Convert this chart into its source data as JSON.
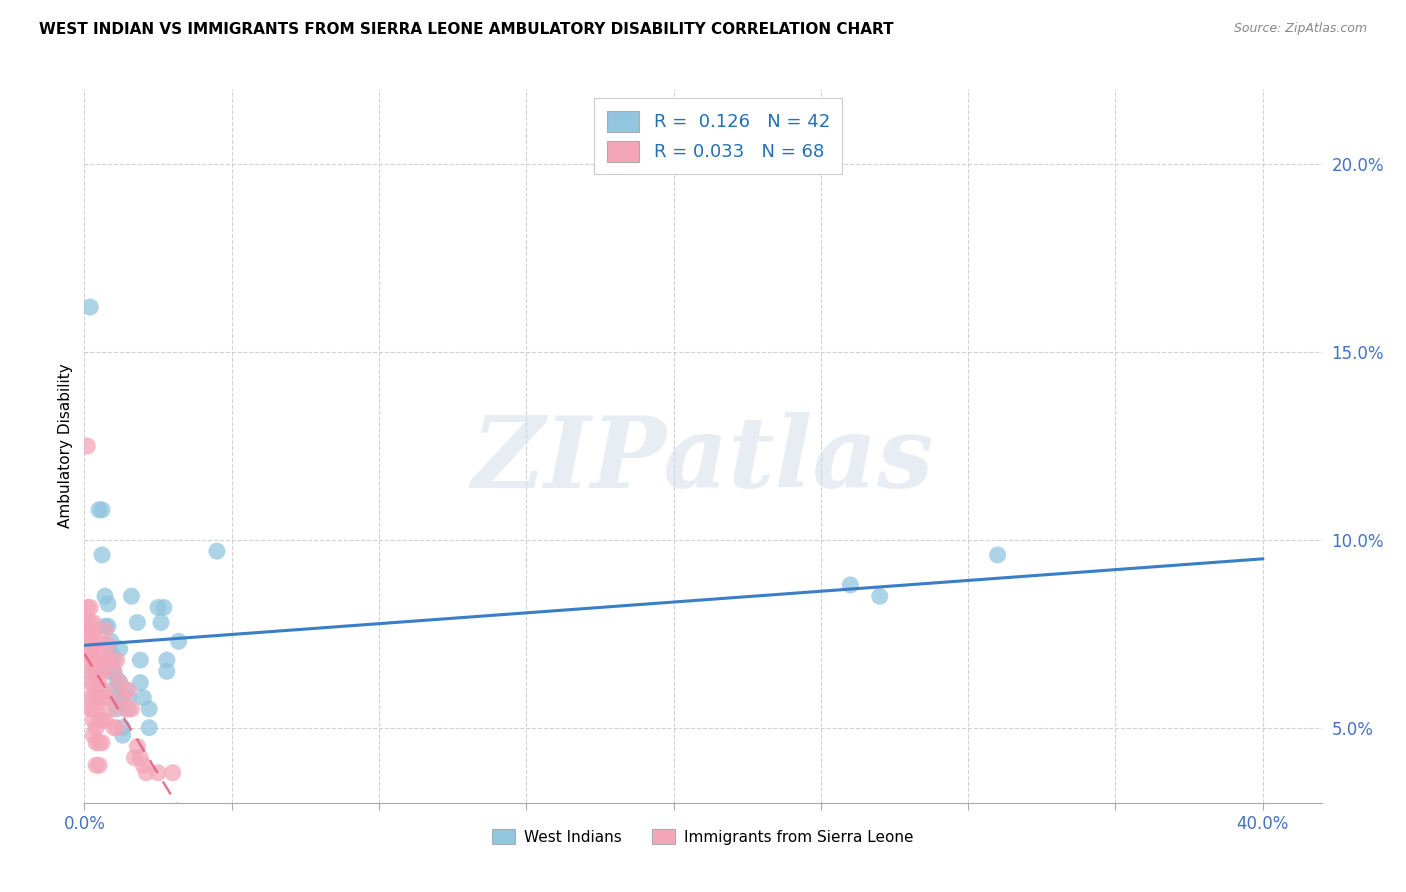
{
  "title": "WEST INDIAN VS IMMIGRANTS FROM SIERRA LEONE AMBULATORY DISABILITY CORRELATION CHART",
  "source": "Source: ZipAtlas.com",
  "ylabel": "Ambulatory Disability",
  "xlim": [
    0.0,
    0.42
  ],
  "ylim": [
    0.03,
    0.22
  ],
  "xticks": [
    0.0,
    0.05,
    0.1,
    0.15,
    0.2,
    0.25,
    0.3,
    0.35,
    0.4
  ],
  "yticks": [
    0.05,
    0.1,
    0.15,
    0.2
  ],
  "xtick_labels": [
    "0.0%",
    "",
    "",
    "",
    "",
    "",
    "",
    "",
    "40.0%"
  ],
  "ytick_labels": [
    "5.0%",
    "10.0%",
    "15.0%",
    "20.0%"
  ],
  "blue_R": 0.126,
  "blue_N": 42,
  "pink_R": 0.033,
  "pink_N": 68,
  "blue_color": "#92c5de",
  "pink_color": "#f4a6b8",
  "blue_line_color": "#3a7ec6",
  "pink_line_color": "#e06080",
  "background_color": "#ffffff",
  "watermark_text": "ZIPatlas",
  "legend_label_blue": "West Indians",
  "legend_label_pink": "Immigrants from Sierra Leone",
  "blue_scatter": [
    [
      0.002,
      0.162
    ],
    [
      0.005,
      0.108
    ],
    [
      0.006,
      0.108
    ],
    [
      0.006,
      0.096
    ],
    [
      0.007,
      0.085
    ],
    [
      0.007,
      0.077
    ],
    [
      0.008,
      0.077
    ],
    [
      0.008,
      0.083
    ],
    [
      0.009,
      0.073
    ],
    [
      0.009,
      0.07
    ],
    [
      0.009,
      0.065
    ],
    [
      0.01,
      0.068
    ],
    [
      0.01,
      0.065
    ],
    [
      0.01,
      0.06
    ],
    [
      0.011,
      0.063
    ],
    [
      0.011,
      0.058
    ],
    [
      0.011,
      0.055
    ],
    [
      0.012,
      0.071
    ],
    [
      0.012,
      0.062
    ],
    [
      0.013,
      0.057
    ],
    [
      0.013,
      0.05
    ],
    [
      0.013,
      0.048
    ],
    [
      0.014,
      0.06
    ],
    [
      0.015,
      0.058
    ],
    [
      0.015,
      0.055
    ],
    [
      0.016,
      0.085
    ],
    [
      0.018,
      0.078
    ],
    [
      0.019,
      0.068
    ],
    [
      0.019,
      0.062
    ],
    [
      0.02,
      0.058
    ],
    [
      0.022,
      0.055
    ],
    [
      0.022,
      0.05
    ],
    [
      0.025,
      0.082
    ],
    [
      0.026,
      0.078
    ],
    [
      0.027,
      0.082
    ],
    [
      0.028,
      0.068
    ],
    [
      0.028,
      0.065
    ],
    [
      0.032,
      0.073
    ],
    [
      0.045,
      0.097
    ],
    [
      0.26,
      0.088
    ],
    [
      0.27,
      0.085
    ],
    [
      0.31,
      0.096
    ]
  ],
  "pink_scatter": [
    [
      0.001,
      0.125
    ],
    [
      0.001,
      0.082
    ],
    [
      0.001,
      0.078
    ],
    [
      0.001,
      0.075
    ],
    [
      0.001,
      0.072
    ],
    [
      0.001,
      0.07
    ],
    [
      0.002,
      0.082
    ],
    [
      0.002,
      0.078
    ],
    [
      0.002,
      0.075
    ],
    [
      0.002,
      0.07
    ],
    [
      0.002,
      0.068
    ],
    [
      0.002,
      0.065
    ],
    [
      0.002,
      0.062
    ],
    [
      0.002,
      0.058
    ],
    [
      0.002,
      0.055
    ],
    [
      0.003,
      0.078
    ],
    [
      0.003,
      0.075
    ],
    [
      0.003,
      0.072
    ],
    [
      0.003,
      0.068
    ],
    [
      0.003,
      0.065
    ],
    [
      0.003,
      0.062
    ],
    [
      0.003,
      0.058
    ],
    [
      0.003,
      0.055
    ],
    [
      0.003,
      0.052
    ],
    [
      0.003,
      0.048
    ],
    [
      0.004,
      0.072
    ],
    [
      0.004,
      0.068
    ],
    [
      0.004,
      0.065
    ],
    [
      0.004,
      0.06
    ],
    [
      0.004,
      0.055
    ],
    [
      0.004,
      0.05
    ],
    [
      0.004,
      0.046
    ],
    [
      0.004,
      0.04
    ],
    [
      0.005,
      0.068
    ],
    [
      0.005,
      0.063
    ],
    [
      0.005,
      0.058
    ],
    [
      0.005,
      0.052
    ],
    [
      0.005,
      0.046
    ],
    [
      0.005,
      0.04
    ],
    [
      0.006,
      0.072
    ],
    [
      0.006,
      0.065
    ],
    [
      0.006,
      0.058
    ],
    [
      0.006,
      0.052
    ],
    [
      0.006,
      0.046
    ],
    [
      0.007,
      0.076
    ],
    [
      0.007,
      0.068
    ],
    [
      0.007,
      0.06
    ],
    [
      0.007,
      0.052
    ],
    [
      0.008,
      0.072
    ],
    [
      0.008,
      0.058
    ],
    [
      0.009,
      0.068
    ],
    [
      0.009,
      0.055
    ],
    [
      0.01,
      0.065
    ],
    [
      0.01,
      0.05
    ],
    [
      0.011,
      0.068
    ],
    [
      0.011,
      0.05
    ],
    [
      0.012,
      0.062
    ],
    [
      0.013,
      0.058
    ],
    [
      0.014,
      0.055
    ],
    [
      0.015,
      0.06
    ],
    [
      0.016,
      0.055
    ],
    [
      0.017,
      0.042
    ],
    [
      0.018,
      0.045
    ],
    [
      0.019,
      0.042
    ],
    [
      0.02,
      0.04
    ],
    [
      0.021,
      0.038
    ],
    [
      0.025,
      0.038
    ],
    [
      0.03,
      0.038
    ]
  ]
}
